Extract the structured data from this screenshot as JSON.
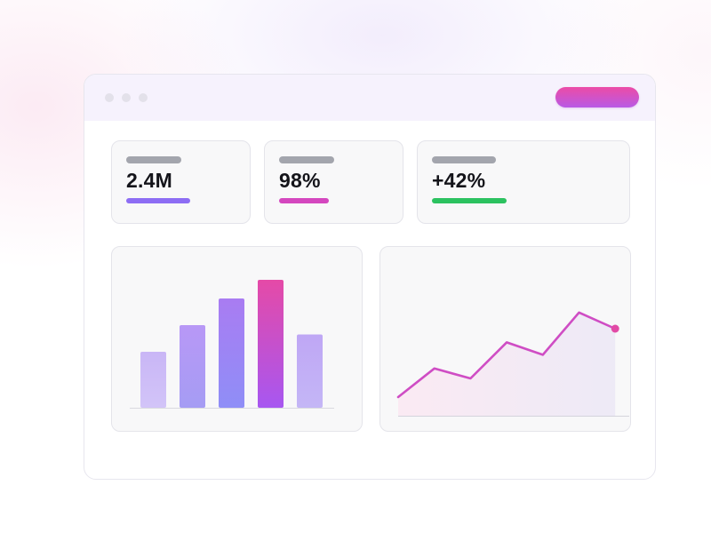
{
  "header": {
    "window_controls": [
      "window-dot",
      "window-dot",
      "window-dot"
    ],
    "action_button_gradient": [
      "#ec4ba6",
      "#b85ae6"
    ]
  },
  "stats": [
    {
      "value": "2.4M",
      "accent": "#8d6df4",
      "progress": 0.45
    },
    {
      "value": "98%",
      "accent": "#d447bf",
      "progress": 0.36
    },
    {
      "value": "+42%",
      "accent": "#2cc260",
      "progress": 0.38
    }
  ],
  "chart_data": [
    {
      "type": "bar",
      "categories": [
        "",
        "",
        "",
        "",
        ""
      ],
      "values": [
        42,
        62,
        82,
        96,
        55
      ],
      "ylim": [
        0,
        100
      ],
      "colors": [
        [
          "#c9b6f6",
          "#d2c4f8"
        ],
        [
          "#b898f6",
          "#a59cf4"
        ],
        [
          "#a97cf2",
          "#8f8ef7"
        ],
        [
          "#e54aa7",
          "#a757f1"
        ],
        [
          "#bfa7f5",
          "#c4b6f6"
        ]
      ],
      "title": "",
      "xlabel": "",
      "ylabel": "",
      "grid": false
    },
    {
      "type": "area",
      "x": [
        0,
        1,
        2,
        3,
        4,
        5,
        6
      ],
      "values": [
        15,
        38,
        30,
        59,
        49,
        83,
        70
      ],
      "ylim": [
        0,
        100
      ],
      "line_color": "#cf4dc4",
      "title": "",
      "xlabel": "",
      "ylabel": "",
      "grid": false
    }
  ]
}
